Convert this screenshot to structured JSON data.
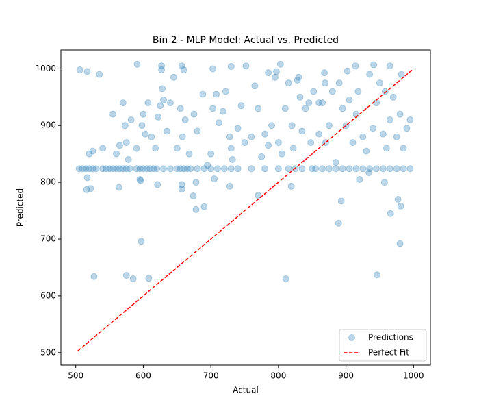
{
  "chart_data": {
    "type": "scatter",
    "title": "Bin 2 - MLP Model: Actual vs. Predicted",
    "xlabel": "Actual",
    "ylabel": "Predicted",
    "xlim": [
      478,
      1025
    ],
    "ylim": [
      478,
      1033
    ],
    "xticks": [
      500,
      600,
      700,
      800,
      900,
      1000
    ],
    "yticks": [
      500,
      600,
      700,
      800,
      900,
      1000
    ],
    "legend": "lower right",
    "series": [
      {
        "name": "Predictions",
        "type": "scatter",
        "color": "#1f77b4",
        "alpha": 0.3,
        "x": [
          505,
          510,
          515,
          520,
          525,
          530,
          540,
          545,
          550,
          555,
          560,
          565,
          570,
          575,
          580,
          590,
          595,
          600,
          605,
          610,
          615,
          620,
          630,
          640,
          650,
          655,
          660,
          665,
          670,
          680,
          690,
          700,
          710,
          720,
          730,
          740,
          760,
          780,
          800,
          815,
          825,
          835,
          850,
          855,
          865,
          875,
          885,
          895,
          905,
          915,
          925,
          935,
          945,
          955,
          965,
          975,
          985,
          995,
          520,
          525,
          540,
          555,
          560,
          565,
          570,
          573,
          575,
          578,
          582,
          590,
          595,
          598,
          600,
          603,
          607,
          612,
          618,
          622,
          625,
          628,
          630,
          635,
          640,
          645,
          650,
          655,
          658,
          662,
          668,
          675,
          680,
          688,
          695,
          700,
          703,
          708,
          712,
          718,
          722,
          728,
          730,
          732,
          740,
          745,
          750,
          760,
          765,
          770,
          775,
          780,
          785,
          790,
          795,
          800,
          805,
          810,
          815,
          820,
          822,
          828,
          832,
          835,
          840,
          845,
          848,
          852,
          860,
          865,
          870,
          875,
          880,
          885,
          890,
          895,
          900,
          905,
          910,
          915,
          918,
          925,
          930,
          935,
          940,
          945,
          950,
          955,
          960,
          965,
          970,
          975,
          980,
          985,
          990,
          995,
          597,
          527,
          575,
          585,
          608,
          811,
          946,
          980,
          889,
          893,
          966,
          977,
          981,
          690,
          678,
          674,
          770,
          522,
          516,
          517,
          564,
          596,
          621,
          657,
          657,
          728,
          705,
          678,
          920,
          957,
          819,
          934,
          506,
          517,
          535,
          591,
          627,
          627,
          657,
          660,
          703,
          730,
          752,
          785,
          803,
          797,
          868,
          914,
          941,
          965,
          982,
          958,
          869,
          902,
          860,
          830
        ],
        "values": [
          824,
          824,
          824,
          824,
          824,
          824,
          824,
          824,
          824,
          824,
          824,
          824,
          824,
          824,
          824,
          824,
          824,
          824,
          824,
          824,
          824,
          824,
          824,
          824,
          824,
          824,
          824,
          824,
          824,
          824,
          824,
          824,
          824,
          824,
          824,
          824,
          824,
          824,
          824,
          824,
          824,
          824,
          824,
          824,
          824,
          824,
          824,
          824,
          824,
          824,
          824,
          824,
          824,
          824,
          824,
          824,
          824,
          824,
          850,
          855,
          860,
          920,
          850,
          865,
          940,
          900,
          870,
          840,
          910,
          860,
          805,
          900,
          920,
          885,
          940,
          880,
          860,
          915,
          935,
          965,
          945,
          890,
          940,
          985,
          860,
          930,
          880,
          910,
          850,
          920,
          890,
          955,
          830,
          850,
          930,
          955,
          905,
          925,
          960,
          880,
          860,
          840,
          895,
          935,
          870,
          880,
          970,
          930,
          845,
          885,
          865,
          900,
          985,
          870,
          850,
          930,
          975,
          900,
          860,
          980,
          950,
          890,
          930,
          940,
          870,
          960,
          885,
          940,
          870,
          900,
          960,
          835,
          975,
          930,
          900,
          945,
          870,
          920,
          960,
          880,
          855,
          990,
          895,
          940,
          975,
          885,
          860,
          910,
          950,
          880,
          920,
          860,
          895,
          910,
          696,
          634,
          636,
          630,
          631,
          630,
          637,
          692,
          728,
          767,
          745,
          770,
          758,
          757,
          752,
          776,
          777,
          789,
          787,
          808,
          791,
          803,
          796,
          796,
          788,
          793,
          806,
          800,
          805,
          800,
          793,
          817,
          998,
          995,
          990,
          1008,
          1005,
          998,
          1005,
          998,
          1000,
          1004,
          1005,
          993,
          1008,
          995,
          993,
          1005,
          1007,
          1005,
          990,
          960,
          975,
          996,
          940,
          985
        ]
      },
      {
        "name": "Perfect Fit",
        "type": "line",
        "color": "#ff0000",
        "dashed": true,
        "x": [
          503,
          1000
        ],
        "values": [
          503,
          1000
        ]
      }
    ]
  }
}
